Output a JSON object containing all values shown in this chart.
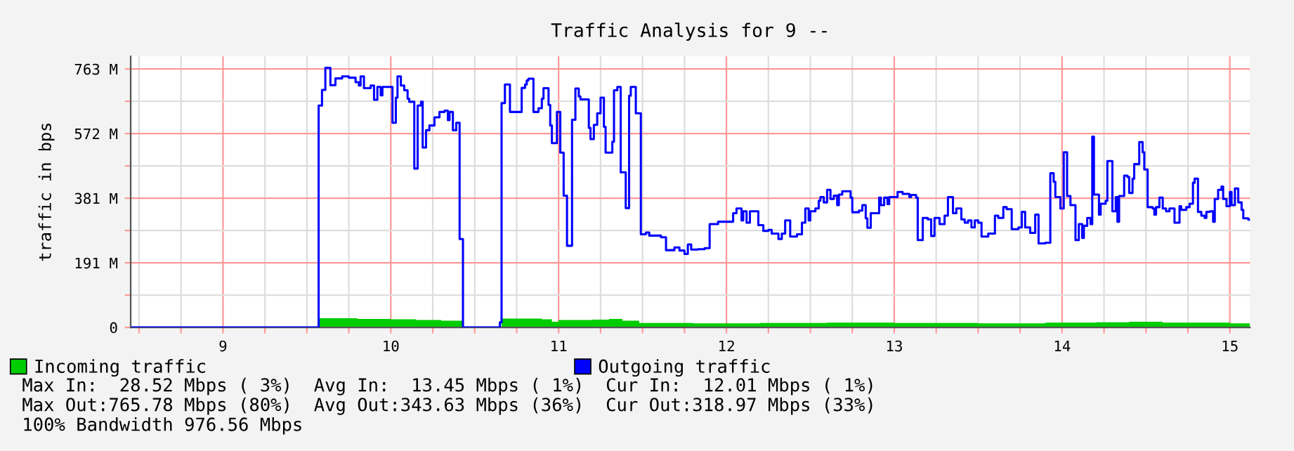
{
  "chart_data": {
    "type": "step",
    "title": "Traffic Analysis for 9 --",
    "ylabel": "traffic in bps",
    "xlim": [
      8.45,
      15.12
    ],
    "xticks": [
      {
        "value": 8.5,
        "label": null
      },
      {
        "value": 8.75,
        "label": null
      },
      9,
      {
        "value": 9.25,
        "label": null
      },
      {
        "value": 9.5,
        "label": null
      },
      {
        "value": 9.75,
        "label": null
      },
      10,
      {
        "value": 10.25,
        "label": null
      },
      {
        "value": 10.5,
        "label": null
      },
      {
        "value": 10.75,
        "label": null
      },
      11,
      {
        "value": 11.25,
        "label": null
      },
      {
        "value": 11.5,
        "label": null
      },
      {
        "value": 11.75,
        "label": null
      },
      12,
      {
        "value": 12.25,
        "label": null
      },
      {
        "value": 12.5,
        "label": null
      },
      {
        "value": 12.75,
        "label": null
      },
      13,
      {
        "value": 13.25,
        "label": null
      },
      {
        "value": 13.5,
        "label": null
      },
      {
        "value": 13.75,
        "label": null
      },
      14,
      {
        "value": 14.25,
        "label": null
      },
      {
        "value": 14.5,
        "label": null
      },
      {
        "value": 14.75,
        "label": null
      },
      15
    ],
    "ylim": [
      0,
      800
    ],
    "yticks": [
      0,
      {
        "value": 95.4,
        "label": null
      },
      {
        "value": 190.7,
        "label": "191 M"
      },
      {
        "value": 286.1,
        "label": null
      },
      {
        "value": 381.5,
        "label": "381 M"
      },
      {
        "value": 476.8,
        "label": null
      },
      {
        "value": 572.2,
        "label": "572 M"
      },
      {
        "value": 667.6,
        "label": null
      },
      {
        "value": 762.9,
        "label": "763 M"
      }
    ],
    "grid": true,
    "legend": "bottom",
    "series": [
      {
        "type": "area",
        "name": "Incoming traffic",
        "color": "#00cc00",
        "x": [
          8.46,
          9.57,
          9.8,
          10.0,
          10.15,
          10.3,
          10.43,
          10.66,
          10.9,
          10.96,
          11.0,
          11.2,
          11.3,
          11.38,
          11.48,
          11.8,
          12.2,
          12.6,
          13.0,
          13.5,
          13.9,
          14.2,
          14.4,
          14.6,
          15.0,
          15.12
        ],
        "values": [
          2,
          27,
          25,
          24,
          22,
          20,
          0,
          26,
          24,
          17,
          22,
          23,
          25,
          20,
          13,
          12,
          13,
          14,
          13,
          12,
          14,
          15,
          17,
          14,
          12,
          12
        ]
      },
      {
        "name": "Outgoing traffic",
        "color": "#0000ff",
        "x": [
          8.46,
          9.57,
          9.59,
          9.61,
          9.64,
          9.67,
          9.71,
          9.75,
          9.79,
          9.81,
          9.82,
          9.84,
          9.88,
          9.9,
          9.92,
          9.94,
          9.95,
          10.01,
          10.03,
          10.04,
          10.06,
          10.08,
          10.1,
          10.11,
          10.14,
          10.16,
          10.18,
          10.19,
          10.21,
          10.23,
          10.26,
          10.29,
          10.32,
          10.34,
          10.35,
          10.37,
          10.39,
          10.41,
          10.43,
          10.65,
          10.66,
          10.68,
          10.71,
          10.78,
          10.8,
          10.81,
          10.82,
          10.85,
          10.88,
          10.9,
          10.91,
          10.94,
          10.95,
          10.96,
          10.99,
          11.01,
          11.03,
          11.05,
          11.08,
          11.1,
          11.12,
          11.13,
          11.18,
          11.19,
          11.21,
          11.23,
          11.25,
          11.27,
          11.28,
          11.32,
          11.33,
          11.35,
          11.37,
          11.4,
          11.42,
          11.43,
          11.46,
          11.49,
          11.52,
          11.54,
          11.61,
          11.64,
          11.69,
          11.72,
          11.75,
          11.77,
          11.79,
          11.83,
          11.87,
          11.9,
          11.95,
          12.04,
          12.06,
          12.09,
          12.1,
          12.12,
          12.14,
          12.19,
          12.22,
          12.25,
          12.27,
          12.31,
          12.33,
          12.35,
          12.38,
          12.42,
          12.45,
          12.47,
          12.49,
          12.5,
          12.53,
          12.55,
          12.56,
          12.58,
          12.6,
          12.62,
          12.64,
          12.66,
          12.67,
          12.69,
          12.74,
          12.75,
          12.79,
          12.81,
          12.83,
          12.84,
          12.86,
          12.91,
          12.92,
          12.94,
          12.96,
          12.97,
          13.02,
          13.05,
          13.09,
          13.1,
          13.13,
          13.14,
          13.17,
          13.2,
          13.22,
          13.24,
          13.27,
          13.3,
          13.32,
          13.35,
          13.37,
          13.4,
          13.42,
          13.44,
          13.46,
          13.48,
          13.5,
          13.52,
          13.56,
          13.6,
          13.62,
          13.65,
          13.67,
          13.7,
          13.74,
          13.76,
          13.78,
          13.81,
          13.84,
          13.86,
          13.9,
          13.93,
          13.95,
          13.96,
          13.99,
          14.01,
          14.03,
          14.05,
          14.08,
          14.1,
          14.12,
          14.13,
          14.15,
          14.17,
          14.18,
          14.19,
          14.22,
          14.23,
          14.26,
          14.27,
          14.3,
          14.32,
          14.33,
          14.34,
          14.37,
          14.39,
          14.4,
          14.42,
          14.43,
          14.46,
          14.48,
          14.49,
          14.51,
          14.54,
          14.55,
          14.56,
          14.58,
          14.6,
          14.62,
          14.64,
          14.67,
          14.7,
          14.71,
          14.74,
          14.76,
          14.78,
          14.79,
          14.81,
          14.83,
          14.85,
          14.86,
          14.88,
          14.9,
          14.91,
          14.93,
          14.95,
          14.96,
          14.98,
          15.0,
          15.01,
          15.03,
          15.05,
          15.07,
          15.08,
          15.11,
          15.12
        ],
        "values": [
          0,
          655,
          701,
          766,
          715,
          735,
          741,
          737,
          724,
          714,
          741,
          706,
          714,
          672,
          710,
          685,
          710,
          604,
          678,
          741,
          714,
          700,
          675,
          666,
          469,
          655,
          666,
          531,
          582,
          596,
          620,
          636,
          640,
          612,
          636,
          582,
          604,
          261,
          0,
          15,
          662,
          717,
          636,
          707,
          717,
          729,
          734,
          636,
          647,
          675,
          706,
          657,
          596,
          544,
          636,
          516,
          389,
          241,
          613,
          705,
          682,
          673,
          589,
          556,
          598,
          632,
          678,
          592,
          516,
          548,
          700,
          710,
          458,
          352,
          684,
          710,
          632,
          275,
          280,
          271,
          266,
          228,
          236,
          227,
          217,
          245,
          230,
          231,
          234,
          305,
          312,
          337,
          351,
          316,
          343,
          309,
          343,
          302,
          285,
          288,
          277,
          261,
          277,
          316,
          268,
          275,
          309,
          351,
          316,
          343,
          351,
          374,
          385,
          369,
          406,
          379,
          389,
          361,
          392,
          402,
          383,
          340,
          345,
          361,
          322,
          294,
          337,
          383,
          361,
          383,
          364,
          385,
          400,
          394,
          385,
          391,
          383,
          258,
          323,
          319,
          270,
          323,
          305,
          330,
          385,
          337,
          351,
          319,
          309,
          316,
          295,
          316,
          309,
          268,
          277,
          330,
          323,
          355,
          349,
          290,
          295,
          341,
          295,
          279,
          333,
          248,
          250,
          455,
          430,
          385,
          351,
          517,
          388,
          361,
          258,
          305,
          264,
          300,
          323,
          305,
          563,
          392,
          333,
          365,
          374,
          491,
          343,
          385,
          312,
          388,
          448,
          444,
          397,
          439,
          482,
          547,
          517,
          466,
          355,
          351,
          333,
          355,
          383,
          351,
          343,
          351,
          309,
          358,
          347,
          355,
          365,
          427,
          439,
          341,
          330,
          323,
          341,
          343,
          312,
          379,
          406,
          416,
          379,
          358,
          400,
          361,
          410,
          369,
          347,
          322,
          318,
          318
        ]
      }
    ],
    "annotations": [
      "Max In:  28.52 Mbps ( 3%)  Avg In:  13.45 Mbps ( 1%)  Cur In:  12.01 Mbps ( 1%)",
      "Max Out:765.78 Mbps (80%)  Avg Out:343.63 Mbps (36%)  Cur Out:318.97 Mbps (33%)",
      "100% Bandwidth 976.56 Mbps"
    ]
  }
}
